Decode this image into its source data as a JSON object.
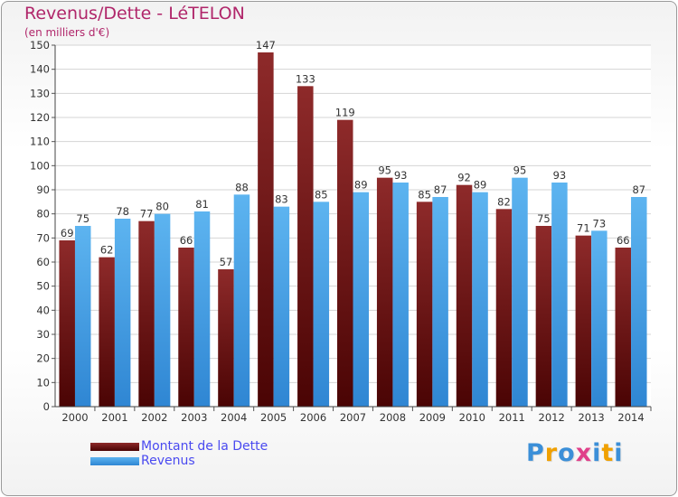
{
  "header": {
    "title": "Revenus/Dette - LéTELON",
    "subtitle": "(en milliers d'€)"
  },
  "legend": {
    "items": [
      "Montant de la Dette",
      "Revenus"
    ]
  },
  "logo": {
    "text": "Proxiti",
    "letter_colors": [
      "#3b8fd8",
      "#f0a000",
      "#3b8fd8",
      "#e0408a",
      "#3b8fd8",
      "#f0a000",
      "#3b8fd8"
    ]
  },
  "colors": {
    "dette_top": "#8e2a2a",
    "dette_bottom": "#4a0404",
    "revenus_top": "#5db4f0",
    "revenus_bottom": "#2f86d3",
    "title": "#b0266a",
    "legend_text": "#4a4af0"
  },
  "chart_data": {
    "type": "bar",
    "categories": [
      "2000",
      "2001",
      "2002",
      "2003",
      "2004",
      "2005",
      "2006",
      "2007",
      "2008",
      "2009",
      "2010",
      "2011",
      "2012",
      "2013",
      "2014"
    ],
    "series": [
      {
        "name": "Montant de la Dette",
        "values": [
          69,
          62,
          77,
          66,
          57,
          147,
          133,
          119,
          95,
          85,
          92,
          82,
          75,
          71,
          66
        ]
      },
      {
        "name": "Revenus",
        "values": [
          75,
          78,
          80,
          81,
          88,
          83,
          85,
          89,
          93,
          87,
          89,
          95,
          93,
          73,
          87
        ]
      }
    ],
    "title": "Revenus/Dette - LéTELON",
    "subtitle": "(en milliers d'€)",
    "ylim": [
      0,
      150
    ],
    "ytick_step": 10,
    "grid": true,
    "legend_position": "bottom-left",
    "data_labels": true
  }
}
